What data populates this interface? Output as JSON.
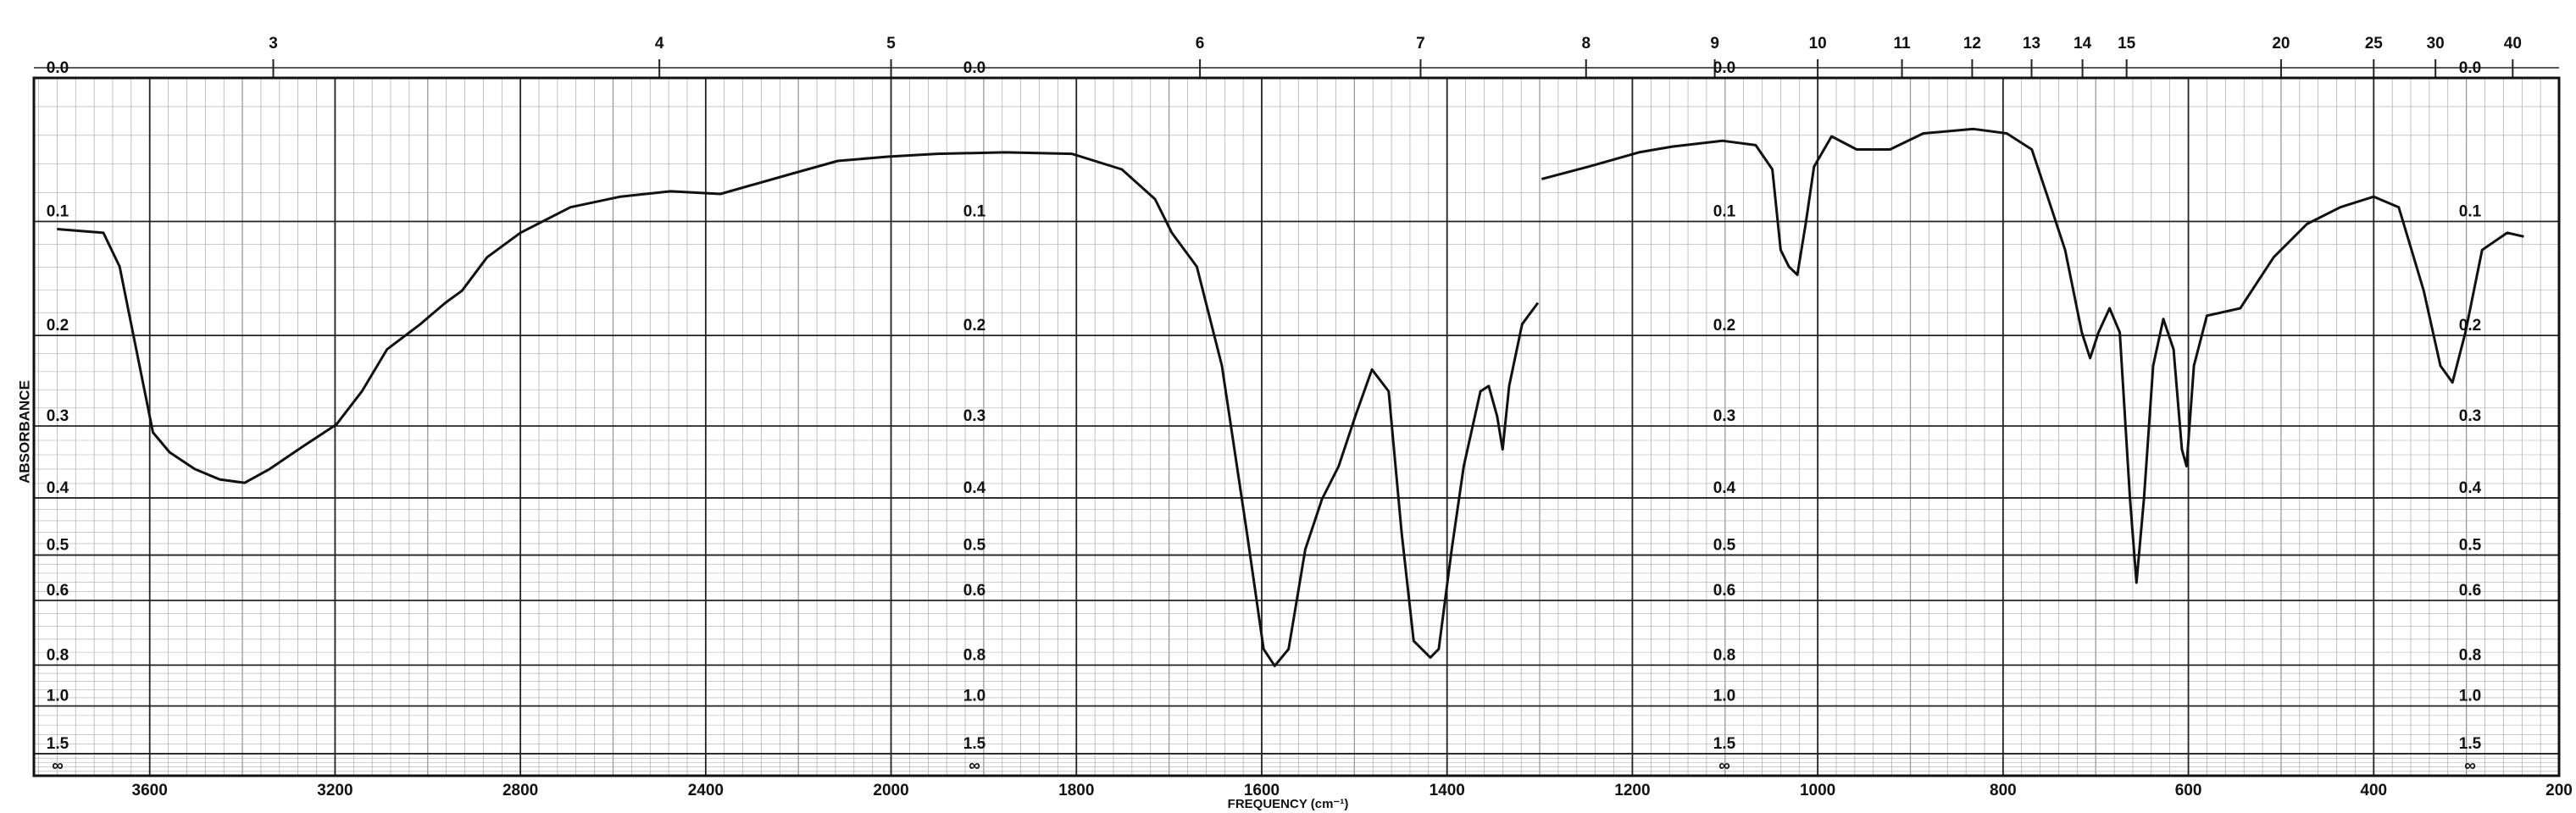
{
  "chart_data": {
    "type": "line",
    "xlabel": "FREQUENCY (cm⁻¹)",
    "ylabel": "ABSORBANCE",
    "xlim": [
      3850,
      200
    ],
    "x_break": 2000,
    "xticks": [
      3600,
      3200,
      2800,
      2400,
      2000,
      1800,
      1600,
      1400,
      1200,
      1000,
      800,
      600,
      400,
      200
    ],
    "x2ticks": [
      3,
      4,
      5,
      6,
      7,
      8,
      9,
      10,
      11,
      12,
      13,
      14,
      15,
      20,
      25,
      30,
      40
    ],
    "ylim": [
      0,
      10
    ],
    "yticks": [
      {
        "value": 0,
        "label": "0.0"
      },
      0.1,
      0.2,
      0.3,
      0.4,
      0.5,
      0.6,
      0.8,
      {
        "value": 1,
        "label": "1.0"
      },
      1.5,
      {
        "value": 10,
        "label": "∞"
      }
    ],
    "grid": true,
    "color": "#111111",
    "x": [
      3800,
      3700,
      3665,
      3629,
      3593,
      3557,
      3503,
      3449,
      3395,
      3341,
      3269,
      3197,
      3142,
      3088,
      3016,
      2962,
      2926,
      2872,
      2800,
      2692,
      2584,
      2476,
      2368,
      2223,
      2115,
      2007,
      1950,
      1877,
      1805,
      1751,
      1715,
      1697,
      1670,
      1643,
      1616,
      1598,
      1586,
      1571,
      1553,
      1535,
      1517,
      1499,
      1481,
      1463,
      1449,
      1436,
      1418,
      1409,
      1395,
      1382,
      1364,
      1355,
      1346,
      1340,
      1333,
      1319,
      1302,
      1300,
      1298,
      1247,
      1193,
      1157,
      1103,
      1067,
      1049,
      1040,
      1031,
      1022,
      1013,
      1004,
      985,
      958,
      922,
      886,
      832,
      796,
      769,
      751,
      733,
      715,
      706,
      697,
      685,
      674,
      663,
      656,
      648,
      638,
      627,
      616,
      607,
      602,
      594,
      580,
      544,
      508,
      472,
      436,
      400,
      373,
      346,
      328,
      315,
      301,
      283,
      256,
      238
    ],
    "values": [
      0.106,
      0.109,
      0.137,
      0.214,
      0.308,
      0.334,
      0.357,
      0.372,
      0.377,
      0.357,
      0.326,
      0.298,
      0.259,
      0.214,
      0.189,
      0.169,
      0.158,
      0.129,
      0.109,
      0.089,
      0.081,
      0.077,
      0.079,
      0.065,
      0.055,
      0.052,
      0.05,
      0.049,
      0.05,
      0.061,
      0.083,
      0.109,
      0.137,
      0.231,
      0.458,
      0.741,
      0.803,
      0.741,
      0.489,
      0.402,
      0.353,
      0.288,
      0.235,
      0.259,
      0.458,
      0.714,
      0.771,
      0.741,
      0.489,
      0.353,
      0.259,
      0.253,
      0.288,
      0.33,
      0.253,
      0.189,
      0.169,
      null,
      0.068,
      0.059,
      0.049,
      0.045,
      0.041,
      0.044,
      0.061,
      0.123,
      0.137,
      0.144,
      0.102,
      0.059,
      0.038,
      0.047,
      0.047,
      0.036,
      0.033,
      0.036,
      0.047,
      0.083,
      0.123,
      0.197,
      0.223,
      0.197,
      0.174,
      0.197,
      0.402,
      0.558,
      0.402,
      0.231,
      0.184,
      0.214,
      0.33,
      0.353,
      0.231,
      0.181,
      0.174,
      0.129,
      0.102,
      0.089,
      0.081,
      0.089,
      0.158,
      0.231,
      0.249,
      0.197,
      0.123,
      0.109,
      0.112
    ]
  }
}
